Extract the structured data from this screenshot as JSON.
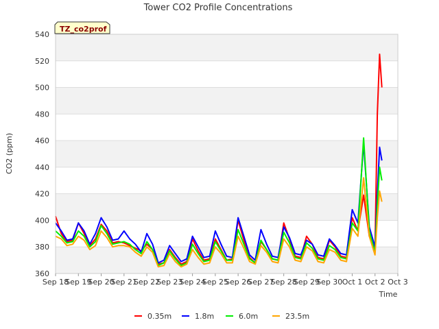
{
  "chart_data": {
    "type": "line",
    "title": "Tower CO2 Profile Concentrations",
    "badge": "TZ_co2prof",
    "xlabel": "Time",
    "ylabel": "CO2 (ppm)",
    "xlim": [
      "Sep 18",
      "Oct 3"
    ],
    "ylim": [
      360,
      540
    ],
    "x_ticks": [
      "Sep 18",
      "Sep 19",
      "Sep 20",
      "Sep 21",
      "Sep 22",
      "Sep 23",
      "Sep 24",
      "Sep 25",
      "Sep 26",
      "Sep 27",
      "Sep 28",
      "Sep 29",
      "Sep 30",
      "Oct 1",
      "Oct 2",
      "Oct 3"
    ],
    "y_ticks": [
      360,
      380,
      400,
      420,
      440,
      460,
      480,
      500,
      520,
      540
    ],
    "grid": true,
    "background_bands": true,
    "legend_position": "bottom",
    "x_days": [
      0,
      0.25,
      0.5,
      0.75,
      1,
      1.25,
      1.5,
      1.75,
      2,
      2.25,
      2.5,
      2.75,
      3,
      3.25,
      3.5,
      3.75,
      4,
      4.25,
      4.5,
      4.75,
      5,
      5.25,
      5.5,
      5.75,
      6,
      6.25,
      6.5,
      6.75,
      7,
      7.25,
      7.5,
      7.75,
      8,
      8.25,
      8.5,
      8.75,
      9,
      9.25,
      9.5,
      9.75,
      10,
      10.25,
      10.5,
      10.75,
      11,
      11.25,
      11.5,
      11.75,
      12,
      12.25,
      12.5,
      12.75,
      13,
      13.25,
      13.5,
      13.75,
      14,
      14.1,
      14.2,
      14.3
    ],
    "series": [
      {
        "name": "0.35m",
        "color": "#ff0000",
        "values": [
          403,
          390,
          384,
          385,
          398,
          390,
          381,
          386,
          397,
          392,
          383,
          384,
          383,
          381,
          379,
          377,
          382,
          378,
          367,
          368,
          378,
          372,
          367,
          369,
          386,
          377,
          370,
          371,
          386,
          378,
          370,
          371,
          400,
          385,
          372,
          368,
          384,
          378,
          371,
          370,
          398,
          386,
          373,
          372,
          388,
          382,
          372,
          371,
          385,
          380,
          373,
          372,
          402,
          392,
          419,
          388,
          378,
          480,
          525,
          500
        ]
      },
      {
        "name": "1.8m",
        "color": "#0000ff",
        "values": [
          398,
          392,
          385,
          386,
          398,
          392,
          382,
          390,
          402,
          395,
          385,
          386,
          392,
          386,
          382,
          376,
          390,
          382,
          368,
          370,
          381,
          375,
          369,
          371,
          388,
          380,
          372,
          373,
          392,
          382,
          373,
          372,
          402,
          388,
          374,
          370,
          393,
          382,
          373,
          372,
          395,
          387,
          375,
          374,
          385,
          382,
          374,
          373,
          386,
          381,
          375,
          374,
          408,
          398,
          458,
          395,
          380,
          420,
          455,
          445
        ]
      },
      {
        "name": "6.0m",
        "color": "#00ee00",
        "values": [
          392,
          388,
          383,
          384,
          392,
          388,
          380,
          384,
          396,
          390,
          382,
          383,
          384,
          382,
          378,
          375,
          384,
          378,
          366,
          368,
          377,
          371,
          366,
          368,
          382,
          375,
          369,
          370,
          384,
          377,
          370,
          370,
          393,
          382,
          371,
          368,
          385,
          378,
          371,
          370,
          391,
          383,
          372,
          371,
          383,
          379,
          371,
          370,
          381,
          378,
          372,
          371,
          398,
          392,
          462,
          392,
          376,
          412,
          440,
          430
        ]
      },
      {
        "name": "23.5m",
        "color": "#ffa500",
        "values": [
          388,
          386,
          381,
          382,
          388,
          385,
          378,
          381,
          392,
          387,
          380,
          381,
          381,
          380,
          376,
          373,
          380,
          376,
          365,
          366,
          375,
          369,
          365,
          367,
          378,
          372,
          367,
          368,
          380,
          375,
          368,
          368,
          388,
          379,
          369,
          367,
          381,
          376,
          369,
          368,
          386,
          380,
          370,
          369,
          380,
          377,
          369,
          368,
          378,
          376,
          370,
          369,
          394,
          388,
          432,
          388,
          374,
          402,
          422,
          414
        ]
      }
    ]
  }
}
